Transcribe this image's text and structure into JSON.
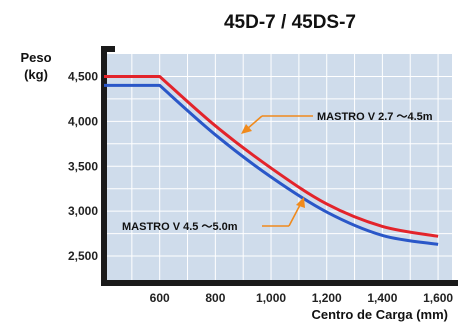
{
  "chart_data": {
    "type": "line",
    "title": "45D-7 / 45DS-7",
    "xlabel": "Centro de Carga (mm)",
    "ylabel": "Peso\n(kg)",
    "ylabel_lines": [
      "Peso",
      "(kg)"
    ],
    "xlim": [
      400,
      1650
    ],
    "ylim": [
      2200,
      4750
    ],
    "xticks": [
      600,
      800,
      1000,
      1200,
      1400,
      1600
    ],
    "xtick_labels": [
      "600",
      "800",
      "1,000",
      "1,200",
      "1,400",
      "1,600"
    ],
    "yticks": [
      2500,
      3000,
      3500,
      4000,
      4500
    ],
    "ytick_labels": [
      "2,500",
      "3,000",
      "3,500",
      "4,000",
      "4,500"
    ],
    "grid": true,
    "colors": {
      "background": "#cfdceb",
      "grid": "#ffffff",
      "axis": "#1a1a1a",
      "annotation_arrow": "#f08a1c"
    },
    "series": [
      {
        "name": "MASTRO V 2.7 ～4.5m",
        "color": "#e3242b",
        "x": [
          400,
          600,
          800,
          1000,
          1200,
          1400,
          1600
        ],
        "y": [
          4500,
          4500,
          3950,
          3480,
          3080,
          2830,
          2720
        ]
      },
      {
        "name": "MASTRO V 4.5 ～5.0m",
        "color": "#2a57c8",
        "x": [
          400,
          600,
          800,
          1000,
          1200,
          1400,
          1600
        ],
        "y": [
          4400,
          4400,
          3850,
          3380,
          2990,
          2730,
          2630
        ]
      }
    ],
    "annotations": [
      "MASTRO V 2.7 ～4.5m",
      "MASTRO V 4.5 ～5.0m"
    ]
  }
}
